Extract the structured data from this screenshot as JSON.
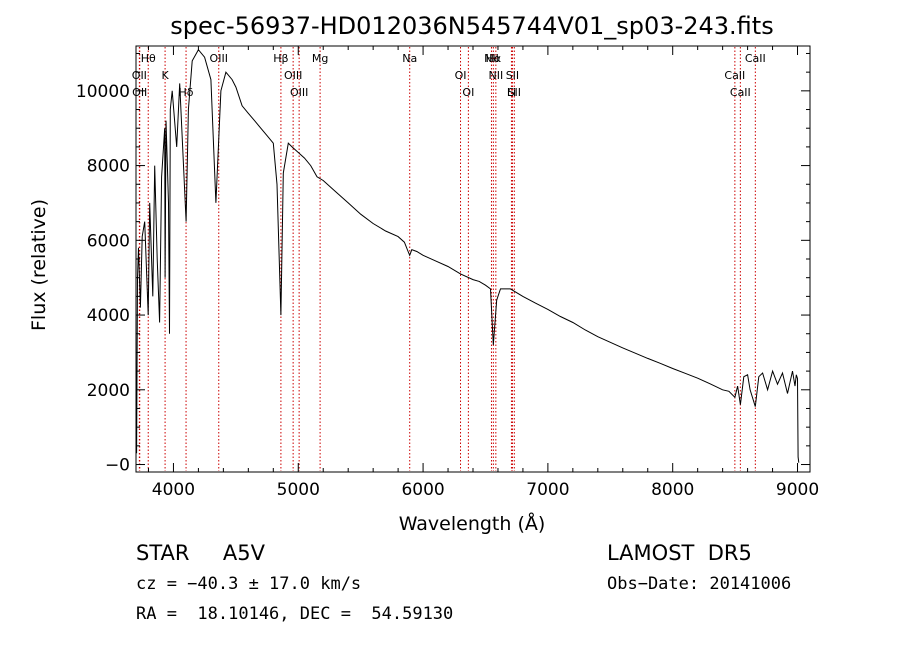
{
  "chart_data": {
    "type": "line",
    "title": "spec-56937-HD012036N545744V01_sp03-243.fits",
    "xlabel": "Wavelength (Å)",
    "ylabel": "Flux (relative)",
    "xlim": [
      3700,
      9100
    ],
    "ylim": [
      -200,
      11200
    ],
    "x_ticks": [
      4000,
      5000,
      6000,
      7000,
      8000,
      9000
    ],
    "y_ticks": [
      0,
      2000,
      4000,
      6000,
      8000,
      10000
    ],
    "y_tick_labels": [
      "−0",
      "2000",
      "4000",
      "6000",
      "8000",
      "10000"
    ],
    "grid": false,
    "series": [
      {
        "x": [
          3700,
          3702,
          3705,
          3712,
          3720,
          3735,
          3750,
          3770,
          3798,
          3810,
          3835,
          3850,
          3870,
          3889,
          3905,
          3930,
          3933,
          3940,
          3960,
          3968,
          3975,
          3990,
          4026,
          4050,
          4101,
          4120,
          4150,
          4200,
          4250,
          4300,
          4340,
          4380,
          4420,
          4470,
          4500,
          4550,
          4600,
          4650,
          4700,
          4750,
          4800,
          4830,
          4861,
          4880,
          4920,
          4950,
          5000,
          5050,
          5100,
          5150,
          5200,
          5300,
          5400,
          5500,
          5600,
          5700,
          5800,
          5850,
          5880,
          5893,
          5910,
          5950,
          6000,
          6100,
          6200,
          6300,
          6400,
          6450,
          6500,
          6540,
          6563,
          6590,
          6620,
          6700,
          6800,
          6900,
          7000,
          7100,
          7200,
          7300,
          7400,
          7500,
          7600,
          7700,
          7800,
          7900,
          8000,
          8100,
          8200,
          8300,
          8400,
          8450,
          8498,
          8520,
          8542,
          8570,
          8600,
          8620,
          8662,
          8690,
          8720,
          8760,
          8800,
          8840,
          8880,
          8920,
          8960,
          8980,
          8990,
          9000,
          9005,
          9010
        ],
        "y": [
          0,
          2500,
          300,
          5000,
          5800,
          4200,
          6100,
          6500,
          4000,
          7000,
          4500,
          8000,
          5500,
          3800,
          7700,
          9000,
          5000,
          9200,
          7000,
          3500,
          9500,
          10000,
          8500,
          10200,
          6500,
          9500,
          10800,
          11100,
          10900,
          10300,
          7000,
          10000,
          10500,
          10300,
          10100,
          9600,
          9400,
          9200,
          9000,
          8800,
          8600,
          7500,
          4000,
          7800,
          8600,
          8500,
          8350,
          8200,
          8000,
          7700,
          7600,
          7300,
          7000,
          6700,
          6450,
          6250,
          6100,
          5950,
          5700,
          5600,
          5750,
          5700,
          5600,
          5450,
          5300,
          5100,
          4950,
          4900,
          4800,
          4700,
          3200,
          4400,
          4700,
          4700,
          4500,
          4320,
          4150,
          3960,
          3800,
          3600,
          3420,
          3270,
          3120,
          2980,
          2840,
          2710,
          2570,
          2440,
          2310,
          2160,
          2000,
          1960,
          1800,
          2100,
          1600,
          2350,
          2400,
          2000,
          1550,
          2350,
          2450,
          2000,
          2500,
          2150,
          2450,
          1900,
          2500,
          2100,
          2400,
          2300,
          200,
          50
        ]
      }
    ],
    "annotations": [
      {
        "label": "Hβ",
        "x": 4861,
        "row": 0
      },
      {
        "label": "OII",
        "x": 3727,
        "row": 1
      },
      {
        "label": "OII",
        "x": 3730,
        "row": 2
      },
      {
        "label": "Hθ",
        "x": 3798
      },
      {
        "label": "K",
        "x": 3933
      },
      {
        "label": "Hδ",
        "x": 4101
      },
      {
        "label": "OIII",
        "x": 4363
      },
      {
        "label": "OIII",
        "x": 4959
      },
      {
        "label": "OIII",
        "x": 5007
      },
      {
        "label": "Na",
        "x": 5893
      },
      {
        "label": "OI",
        "x": 6300
      },
      {
        "label": "OI",
        "x": 6363
      },
      {
        "label": "Hα",
        "x": 6563
      },
      {
        "label": "SII",
        "x": 6716
      },
      {
        "label": "SII",
        "x": 6731
      },
      {
        "label": "NII",
        "x": 6548
      },
      {
        "label": "NII",
        "x": 6583
      },
      {
        "label": "Li",
        "x": 6708
      },
      {
        "label": "Mg",
        "x": 5175
      },
      {
        "label": "CaII",
        "x": 8498
      },
      {
        "label": "CaII",
        "x": 8542
      },
      {
        "label": "CaII",
        "x": 8662
      }
    ]
  },
  "info": {
    "class_line": "STAR     A5V",
    "survey": "LAMOST  DR5",
    "cz_line": "cz = −40.3 ± 17.0 km/s",
    "obs_date": "Obs−Date: 20141006",
    "coords": "RA =  18.10146, DEC =  54.59130"
  }
}
